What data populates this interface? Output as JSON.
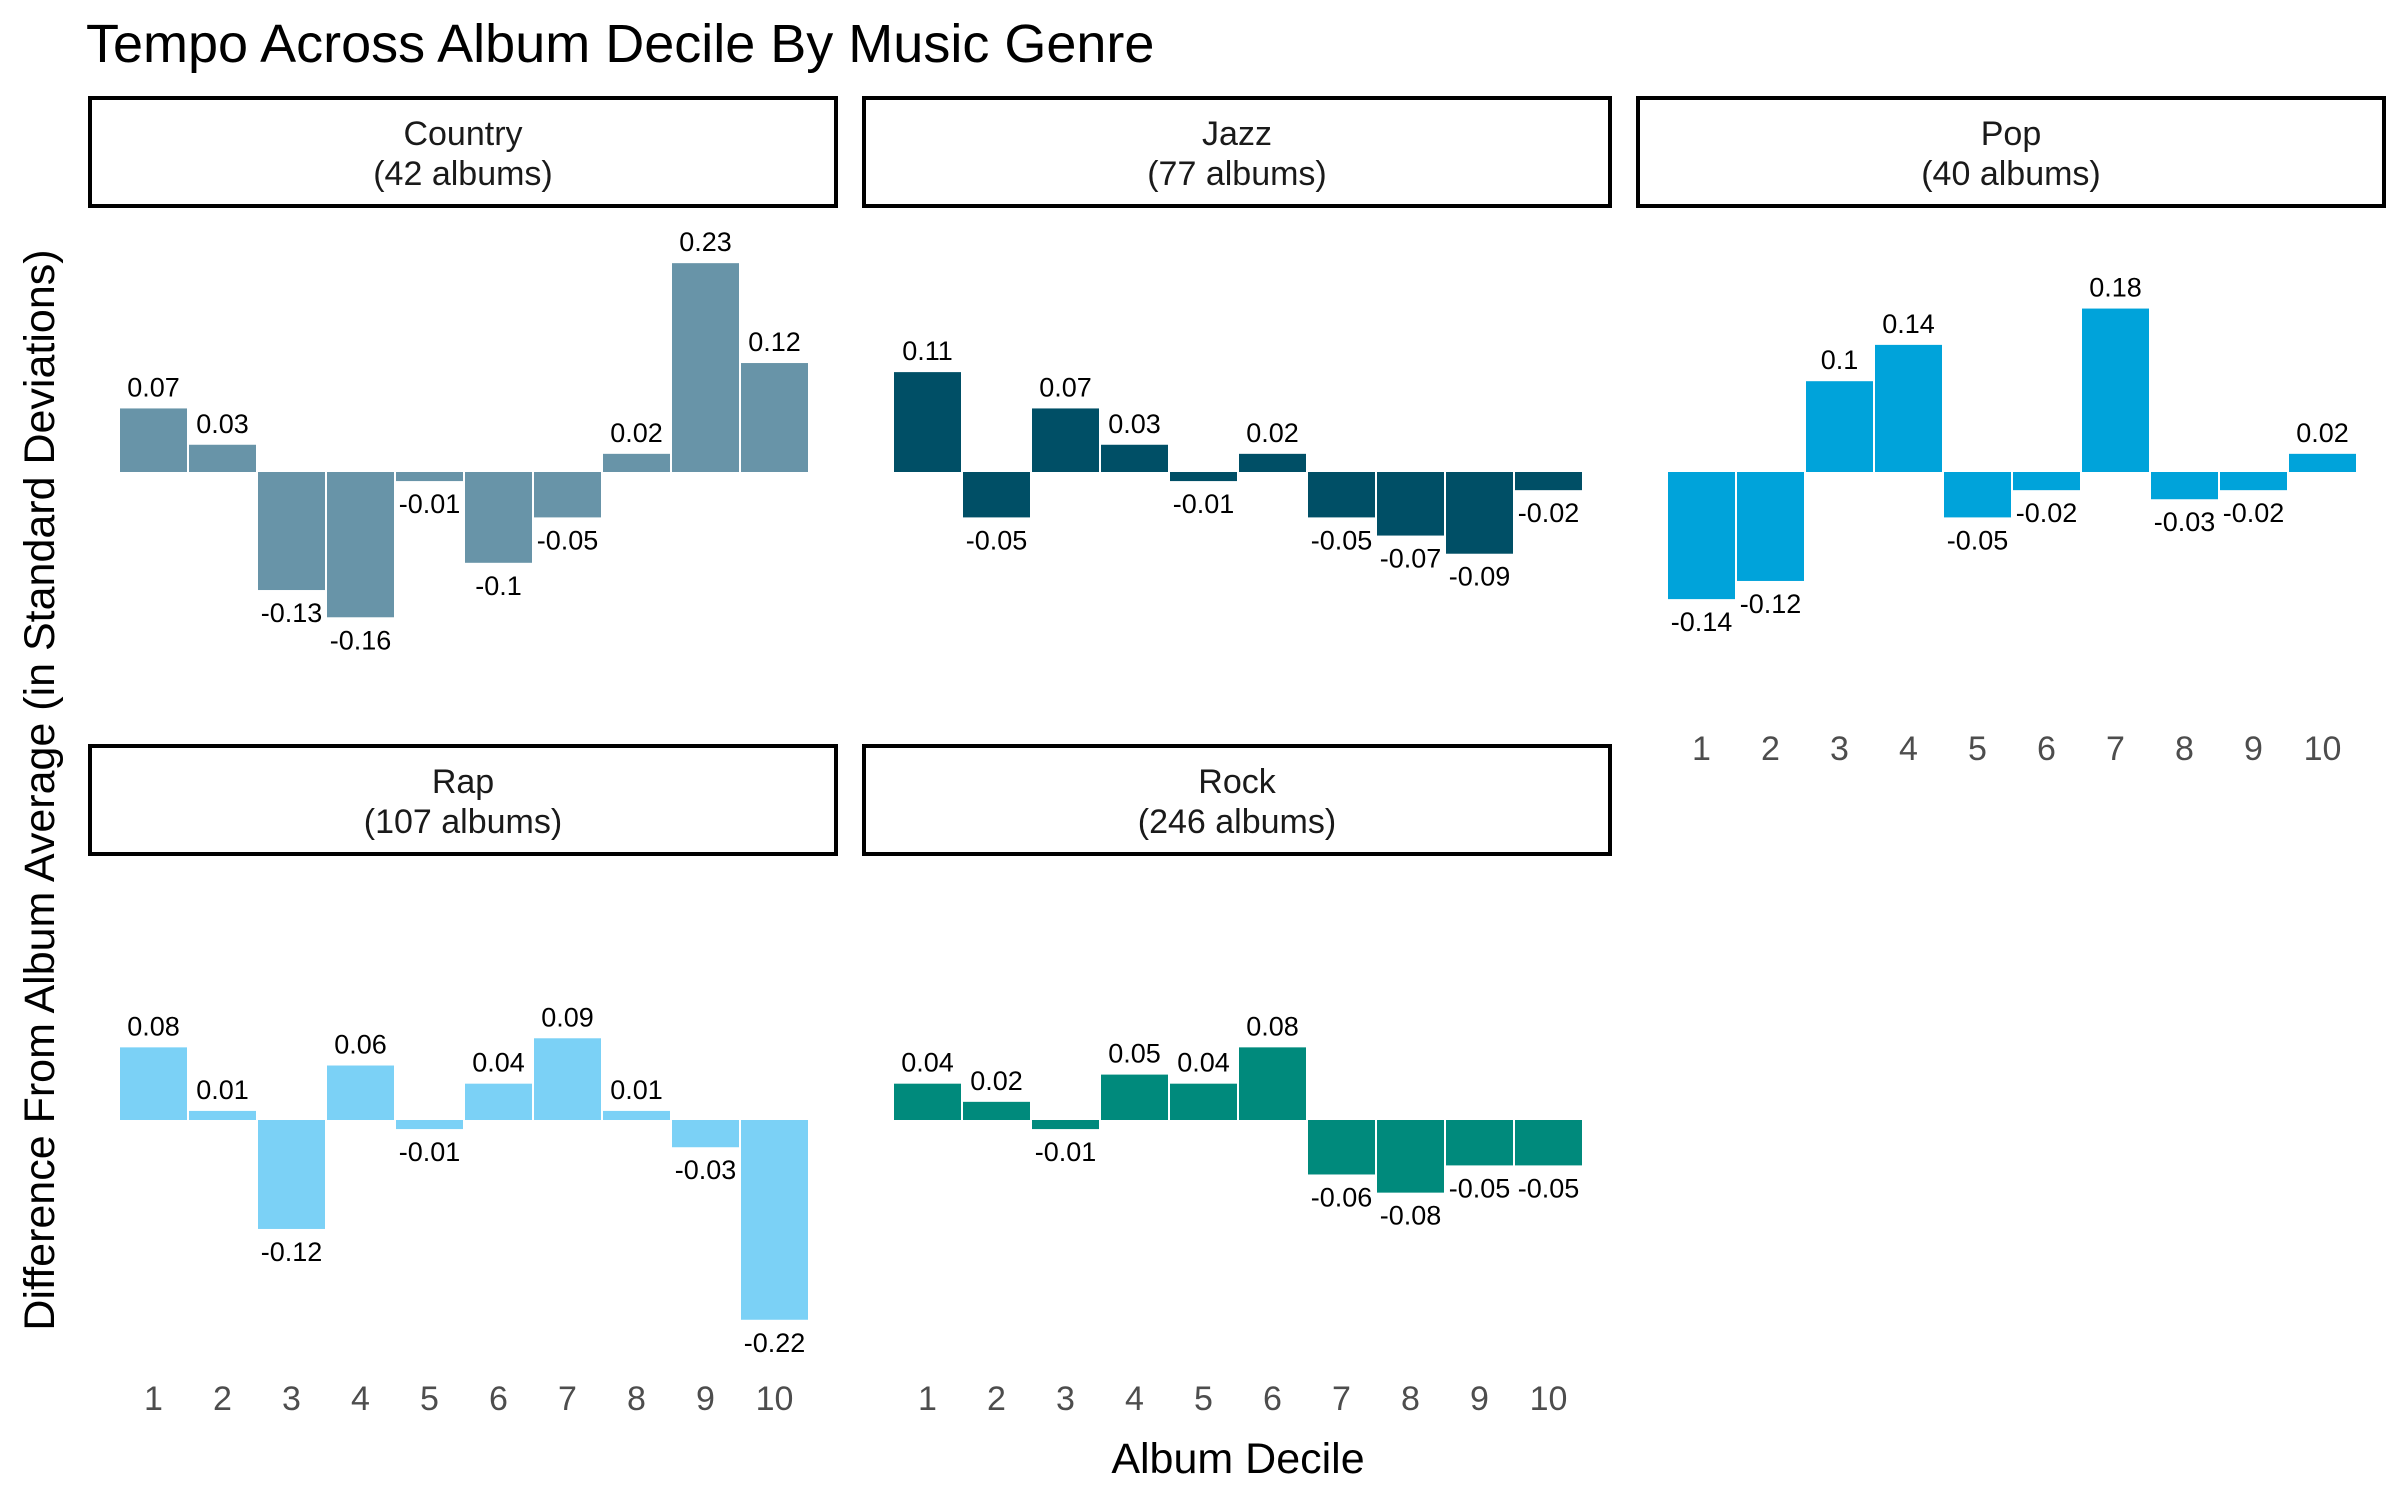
{
  "chart_data": {
    "type": "bar",
    "title": "Tempo Across Album Decile By Music Genre",
    "xlabel": "Album Decile",
    "ylabel": "Difference From Album Average (in Standard Deviations)",
    "categories": [
      "1",
      "2",
      "3",
      "4",
      "5",
      "6",
      "7",
      "8",
      "9",
      "10"
    ],
    "ylim": [
      -0.25,
      0.25
    ],
    "grid": false,
    "facets": [
      {
        "genre": "Country",
        "count_label": "(42 albums)",
        "color": "#6894A8",
        "values": [
          0.07,
          0.03,
          -0.13,
          -0.16,
          -0.01,
          -0.1,
          -0.05,
          0.02,
          0.23,
          0.12
        ]
      },
      {
        "genre": "Jazz",
        "count_label": "(77 albums)",
        "color": "#004F66",
        "values": [
          0.11,
          -0.05,
          0.07,
          0.03,
          -0.01,
          0.02,
          -0.05,
          -0.07,
          -0.09,
          -0.02
        ]
      },
      {
        "genre": "Pop",
        "count_label": "(40 albums)",
        "color": "#00A3DA",
        "values": [
          -0.14,
          -0.12,
          0.1,
          0.14,
          -0.05,
          -0.02,
          0.18,
          -0.03,
          -0.02,
          0.02
        ]
      },
      {
        "genre": "Rap",
        "count_label": "(107 albums)",
        "color": "#7BD1F6",
        "values": [
          0.08,
          0.01,
          -0.12,
          0.06,
          -0.01,
          0.04,
          0.09,
          0.01,
          -0.03,
          -0.22
        ]
      },
      {
        "genre": "Rock",
        "count_label": "(246 albums)",
        "color": "#008A7C",
        "values": [
          0.04,
          0.02,
          -0.01,
          0.05,
          0.04,
          0.08,
          -0.06,
          -0.08,
          -0.05,
          -0.05
        ]
      }
    ]
  }
}
